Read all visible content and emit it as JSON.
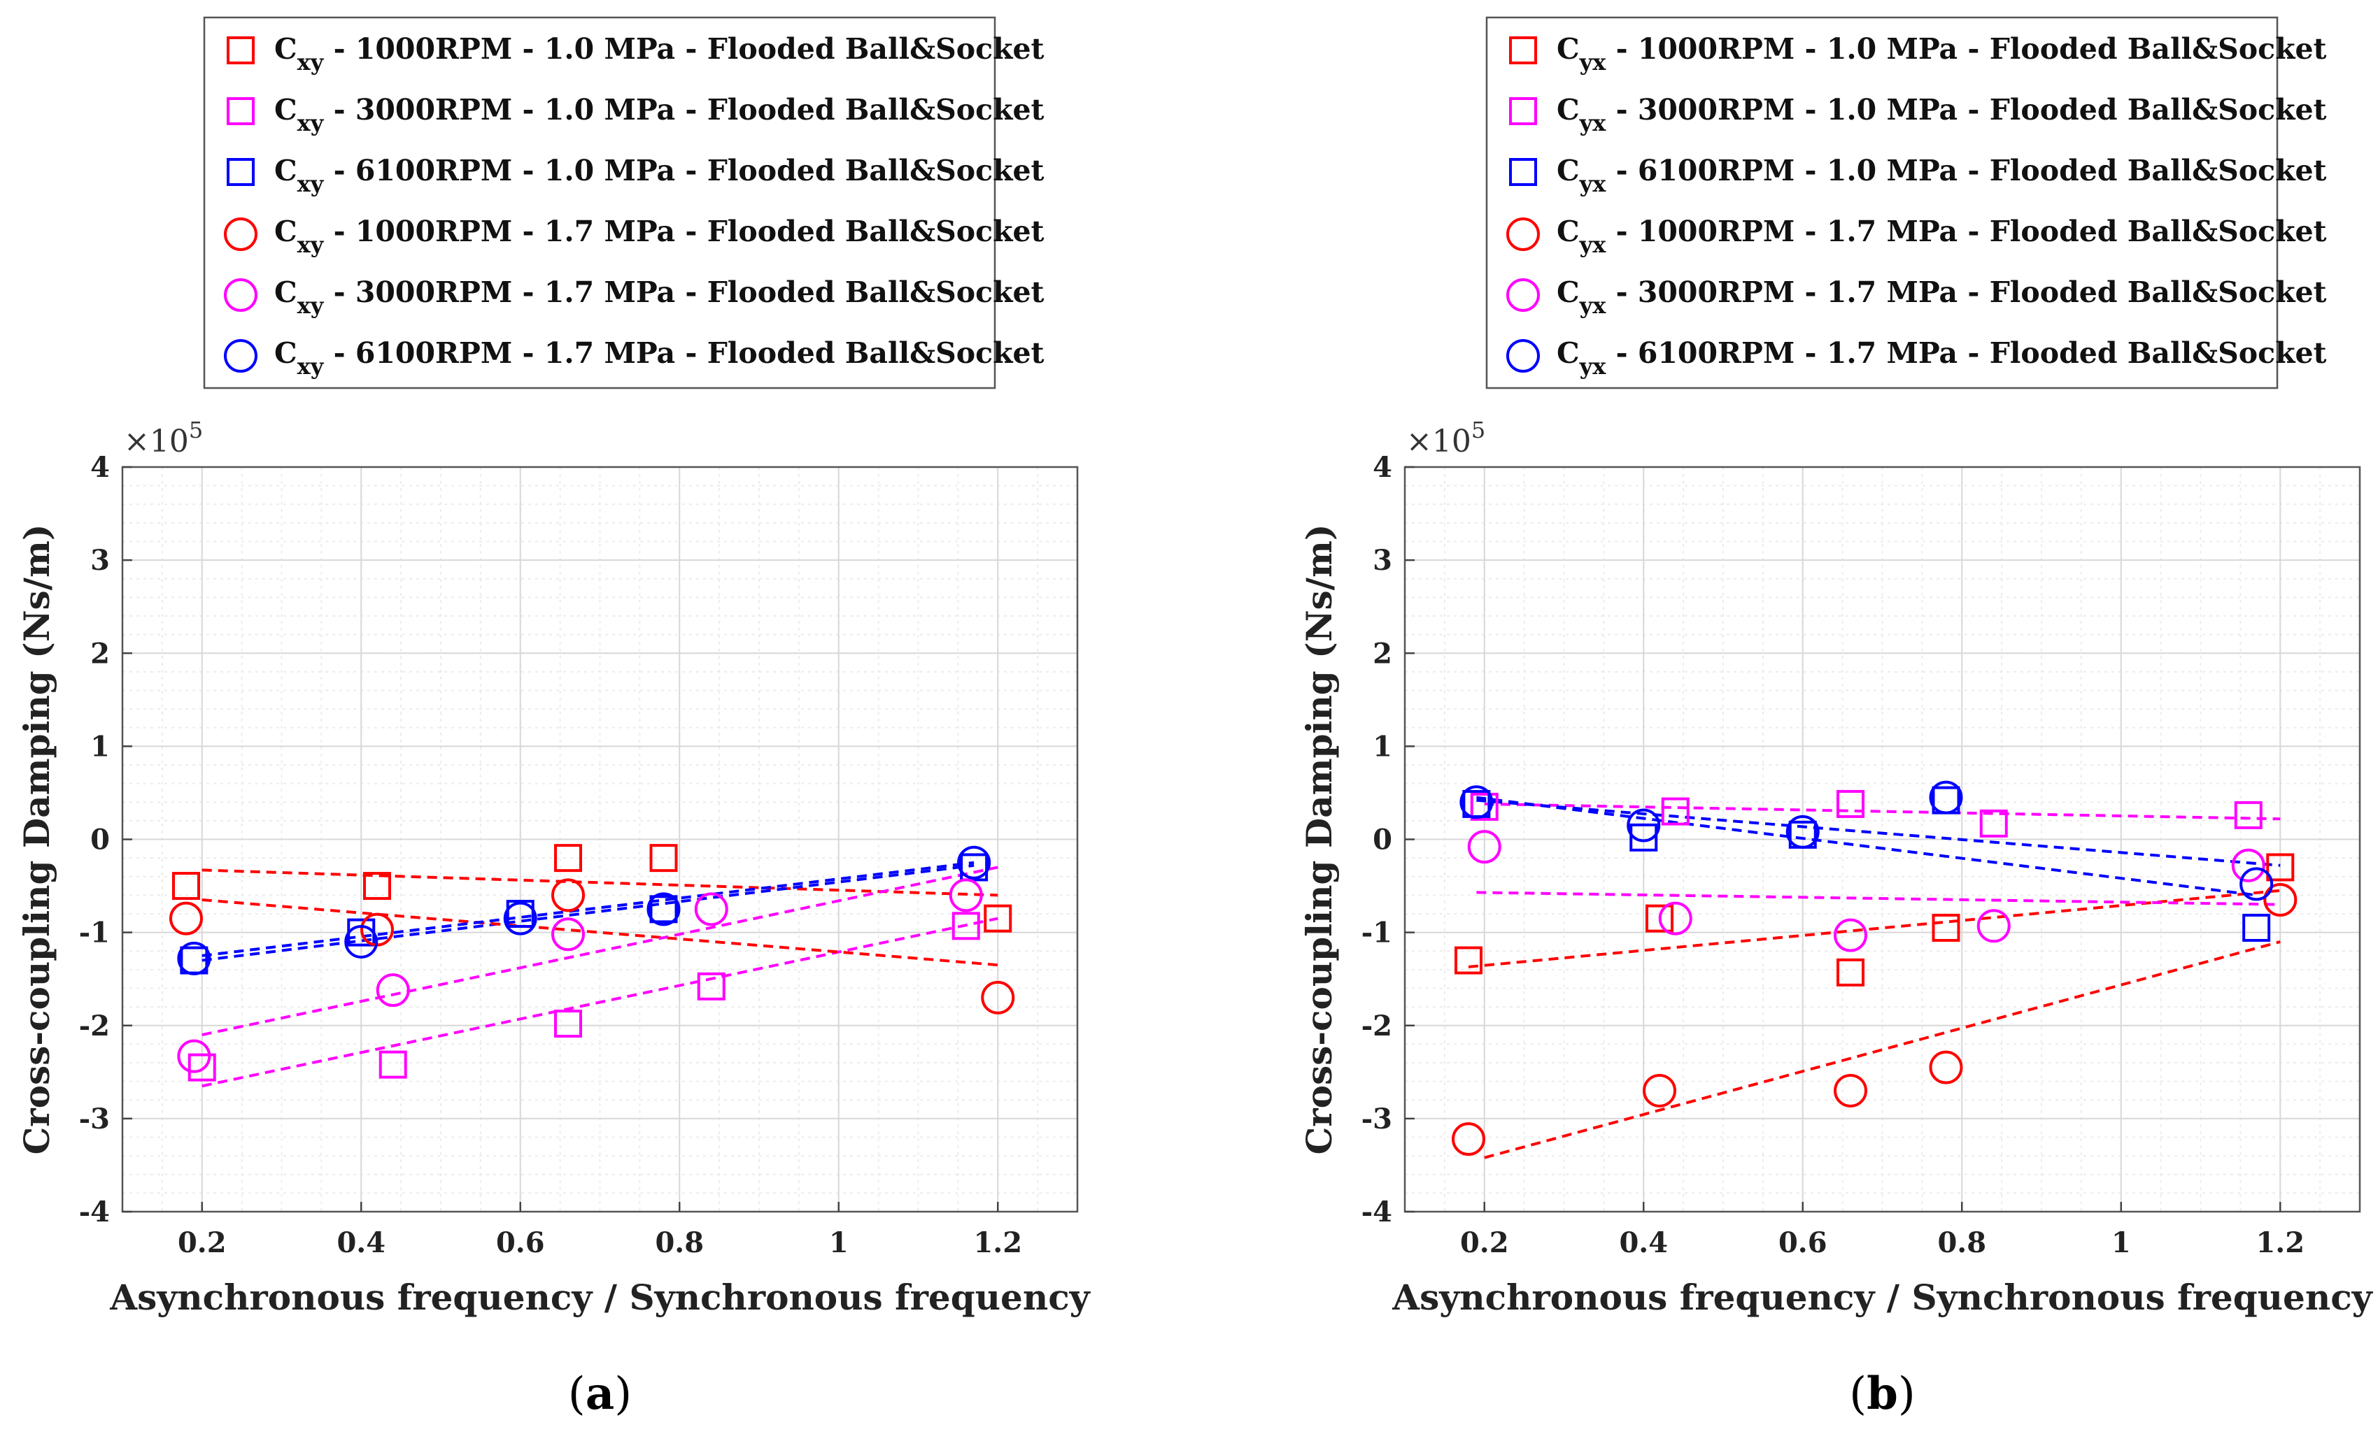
{
  "chart_data": [
    {
      "type": "scatter",
      "panel_label": "a",
      "panel_open": "(",
      "panel_close": ")",
      "xlabel": "Asynchronous frequency / Synchronous frequency",
      "ylabel": "Cross-coupling Damping (Ns/m)",
      "y_multiplier": "×10",
      "y_multiplier_exp": "5",
      "xlim": [
        0.1,
        1.3
      ],
      "ylim": [
        -4,
        4
      ],
      "xticks": [
        0.2,
        0.4,
        0.6,
        0.8,
        1,
        1.2
      ],
      "xtick_labels": [
        "0.2",
        "0.4",
        "0.6",
        "0.8",
        "1",
        "1.2"
      ],
      "yticks": [
        4,
        3,
        2,
        1,
        0,
        -1,
        -2,
        -3,
        -4
      ],
      "ytick_labels": [
        "4",
        "3",
        "2",
        "1",
        "0",
        "-1",
        "-2",
        "-3",
        "-4"
      ],
      "grid": true,
      "legend_position": "above",
      "series": [
        {
          "name_main": "C",
          "name_sub": "xy",
          "name_rest": " - 1000RPM - 1.0 MPa - Flooded Ball&Socket",
          "marker": "square",
          "color": "#ff0000",
          "x": [
            0.18,
            0.42,
            0.66,
            0.78,
            1.2
          ],
          "y": [
            -0.5,
            -0.5,
            -0.2,
            -0.2,
            -0.85
          ],
          "fit": [
            [
              0.2,
              -0.33
            ],
            [
              1.2,
              -0.6
            ]
          ]
        },
        {
          "name_main": "C",
          "name_sub": "xy",
          "name_rest": " - 3000RPM - 1.0 MPa - Flooded Ball&Socket",
          "marker": "square",
          "color": "#ff00ff",
          "x": [
            0.2,
            0.44,
            0.66,
            0.84,
            1.16
          ],
          "y": [
            -2.45,
            -2.42,
            -1.98,
            -1.58,
            -0.93
          ],
          "fit": [
            [
              0.2,
              -2.65
            ],
            [
              1.2,
              -0.85
            ]
          ]
        },
        {
          "name_main": "C",
          "name_sub": "xy",
          "name_rest": " - 6100RPM - 1.0 MPa - Flooded Ball&Socket",
          "marker": "square",
          "color": "#0000ff",
          "x": [
            0.19,
            0.4,
            0.6,
            0.78,
            1.17
          ],
          "y": [
            -1.3,
            -1.0,
            -0.8,
            -0.75,
            -0.3
          ],
          "fit": [
            [
              0.2,
              -1.3
            ],
            [
              1.17,
              -0.28
            ]
          ]
        },
        {
          "name_main": "C",
          "name_sub": "xy",
          "name_rest": " - 1000RPM - 1.7 MPa - Flooded Ball&Socket",
          "marker": "circle",
          "color": "#ff0000",
          "x": [
            0.18,
            0.42,
            0.66,
            1.2
          ],
          "y": [
            -0.85,
            -0.97,
            -0.6,
            -1.7
          ],
          "fit": [
            [
              0.2,
              -0.65
            ],
            [
              1.2,
              -1.35
            ]
          ]
        },
        {
          "name_main": "C",
          "name_sub": "xy",
          "name_rest": " - 3000RPM - 1.7 MPa - Flooded Ball&Socket",
          "marker": "circle",
          "color": "#ff00ff",
          "x": [
            0.19,
            0.44,
            0.66,
            0.84,
            1.16
          ],
          "y": [
            -2.33,
            -1.62,
            -1.02,
            -0.75,
            -0.6
          ],
          "fit": [
            [
              0.2,
              -2.1
            ],
            [
              1.2,
              -0.3
            ]
          ]
        },
        {
          "name_main": "C",
          "name_sub": "xy",
          "name_rest": " - 6100RPM - 1.7 MPa - Flooded Ball&Socket",
          "marker": "circle",
          "color": "#0000ff",
          "x": [
            0.19,
            0.4,
            0.6,
            0.78,
            1.17
          ],
          "y": [
            -1.28,
            -1.1,
            -0.85,
            -0.75,
            -0.25
          ],
          "fit": [
            [
              0.2,
              -1.25
            ],
            [
              1.17,
              -0.25
            ]
          ]
        }
      ]
    },
    {
      "type": "scatter",
      "panel_label": "b",
      "panel_open": "(",
      "panel_close": ")",
      "xlabel": "Asynchronous frequency / Synchronous frequency",
      "ylabel": "Cross-coupling Damping (Ns/m)",
      "y_multiplier": "×10",
      "y_multiplier_exp": "5",
      "xlim": [
        0.1,
        1.3
      ],
      "ylim": [
        -4,
        4
      ],
      "xticks": [
        0.2,
        0.4,
        0.6,
        0.8,
        1,
        1.2
      ],
      "xtick_labels": [
        "0.2",
        "0.4",
        "0.6",
        "0.8",
        "1",
        "1.2"
      ],
      "yticks": [
        4,
        3,
        2,
        1,
        0,
        -1,
        -2,
        -3,
        -4
      ],
      "ytick_labels": [
        "4",
        "3",
        "2",
        "1",
        "0",
        "-1",
        "-2",
        "-3",
        "-4"
      ],
      "grid": true,
      "legend_position": "above",
      "series": [
        {
          "name_main": "C",
          "name_sub": "yx",
          "name_rest": " - 1000RPM - 1.0 MPa - Flooded Ball&Socket",
          "marker": "square",
          "color": "#ff0000",
          "x": [
            0.18,
            0.42,
            0.66,
            0.78,
            1.2
          ],
          "y": [
            -1.3,
            -0.85,
            -1.43,
            -0.95,
            -0.3
          ],
          "fit": [
            [
              0.18,
              -1.37
            ],
            [
              1.2,
              -0.55
            ]
          ]
        },
        {
          "name_main": "C",
          "name_sub": "yx",
          "name_rest": " - 3000RPM - 1.0 MPa - Flooded Ball&Socket",
          "marker": "square",
          "color": "#ff00ff",
          "x": [
            0.2,
            0.44,
            0.66,
            0.84,
            1.16
          ],
          "y": [
            0.35,
            0.3,
            0.38,
            0.17,
            0.26
          ],
          "fit": [
            [
              0.2,
              0.38
            ],
            [
              1.2,
              0.22
            ]
          ]
        },
        {
          "name_main": "C",
          "name_sub": "yx",
          "name_rest": " - 6100RPM - 1.0 MPa - Flooded Ball&Socket",
          "marker": "square",
          "color": "#0000ff",
          "x": [
            0.19,
            0.4,
            0.6,
            0.78,
            1.17
          ],
          "y": [
            0.38,
            0.02,
            0.05,
            0.42,
            -0.95
          ],
          "fit": [
            [
              0.19,
              0.45
            ],
            [
              1.17,
              -0.6
            ]
          ]
        },
        {
          "name_main": "C",
          "name_sub": "yx",
          "name_rest": " - 1000RPM - 1.7 MPa - Flooded Ball&Socket",
          "marker": "circle",
          "color": "#ff0000",
          "x": [
            0.18,
            0.42,
            0.66,
            0.78,
            1.2
          ],
          "y": [
            -3.22,
            -2.7,
            -2.7,
            -2.45,
            -0.65
          ],
          "fit": [
            [
              0.2,
              -3.42
            ],
            [
              1.2,
              -1.1
            ]
          ]
        },
        {
          "name_main": "C",
          "name_sub": "yx",
          "name_rest": " - 3000RPM - 1.7 MPa - Flooded Ball&Socket",
          "marker": "circle",
          "color": "#ff00ff",
          "x": [
            0.2,
            0.44,
            0.66,
            0.84,
            1.16
          ],
          "y": [
            -0.08,
            -0.85,
            -1.03,
            -0.93,
            -0.28
          ],
          "fit": [
            [
              0.19,
              -0.57
            ],
            [
              1.2,
              -0.7
            ]
          ]
        },
        {
          "name_main": "C",
          "name_sub": "yx",
          "name_rest": " - 6100RPM - 1.7 MPa - Flooded Ball&Socket",
          "marker": "circle",
          "color": "#0000ff",
          "x": [
            0.19,
            0.4,
            0.6,
            0.78,
            1.17
          ],
          "y": [
            0.4,
            0.15,
            0.08,
            0.45,
            -0.48
          ],
          "fit": [
            [
              0.19,
              0.42
            ],
            [
              1.2,
              -0.28
            ]
          ]
        }
      ]
    }
  ]
}
